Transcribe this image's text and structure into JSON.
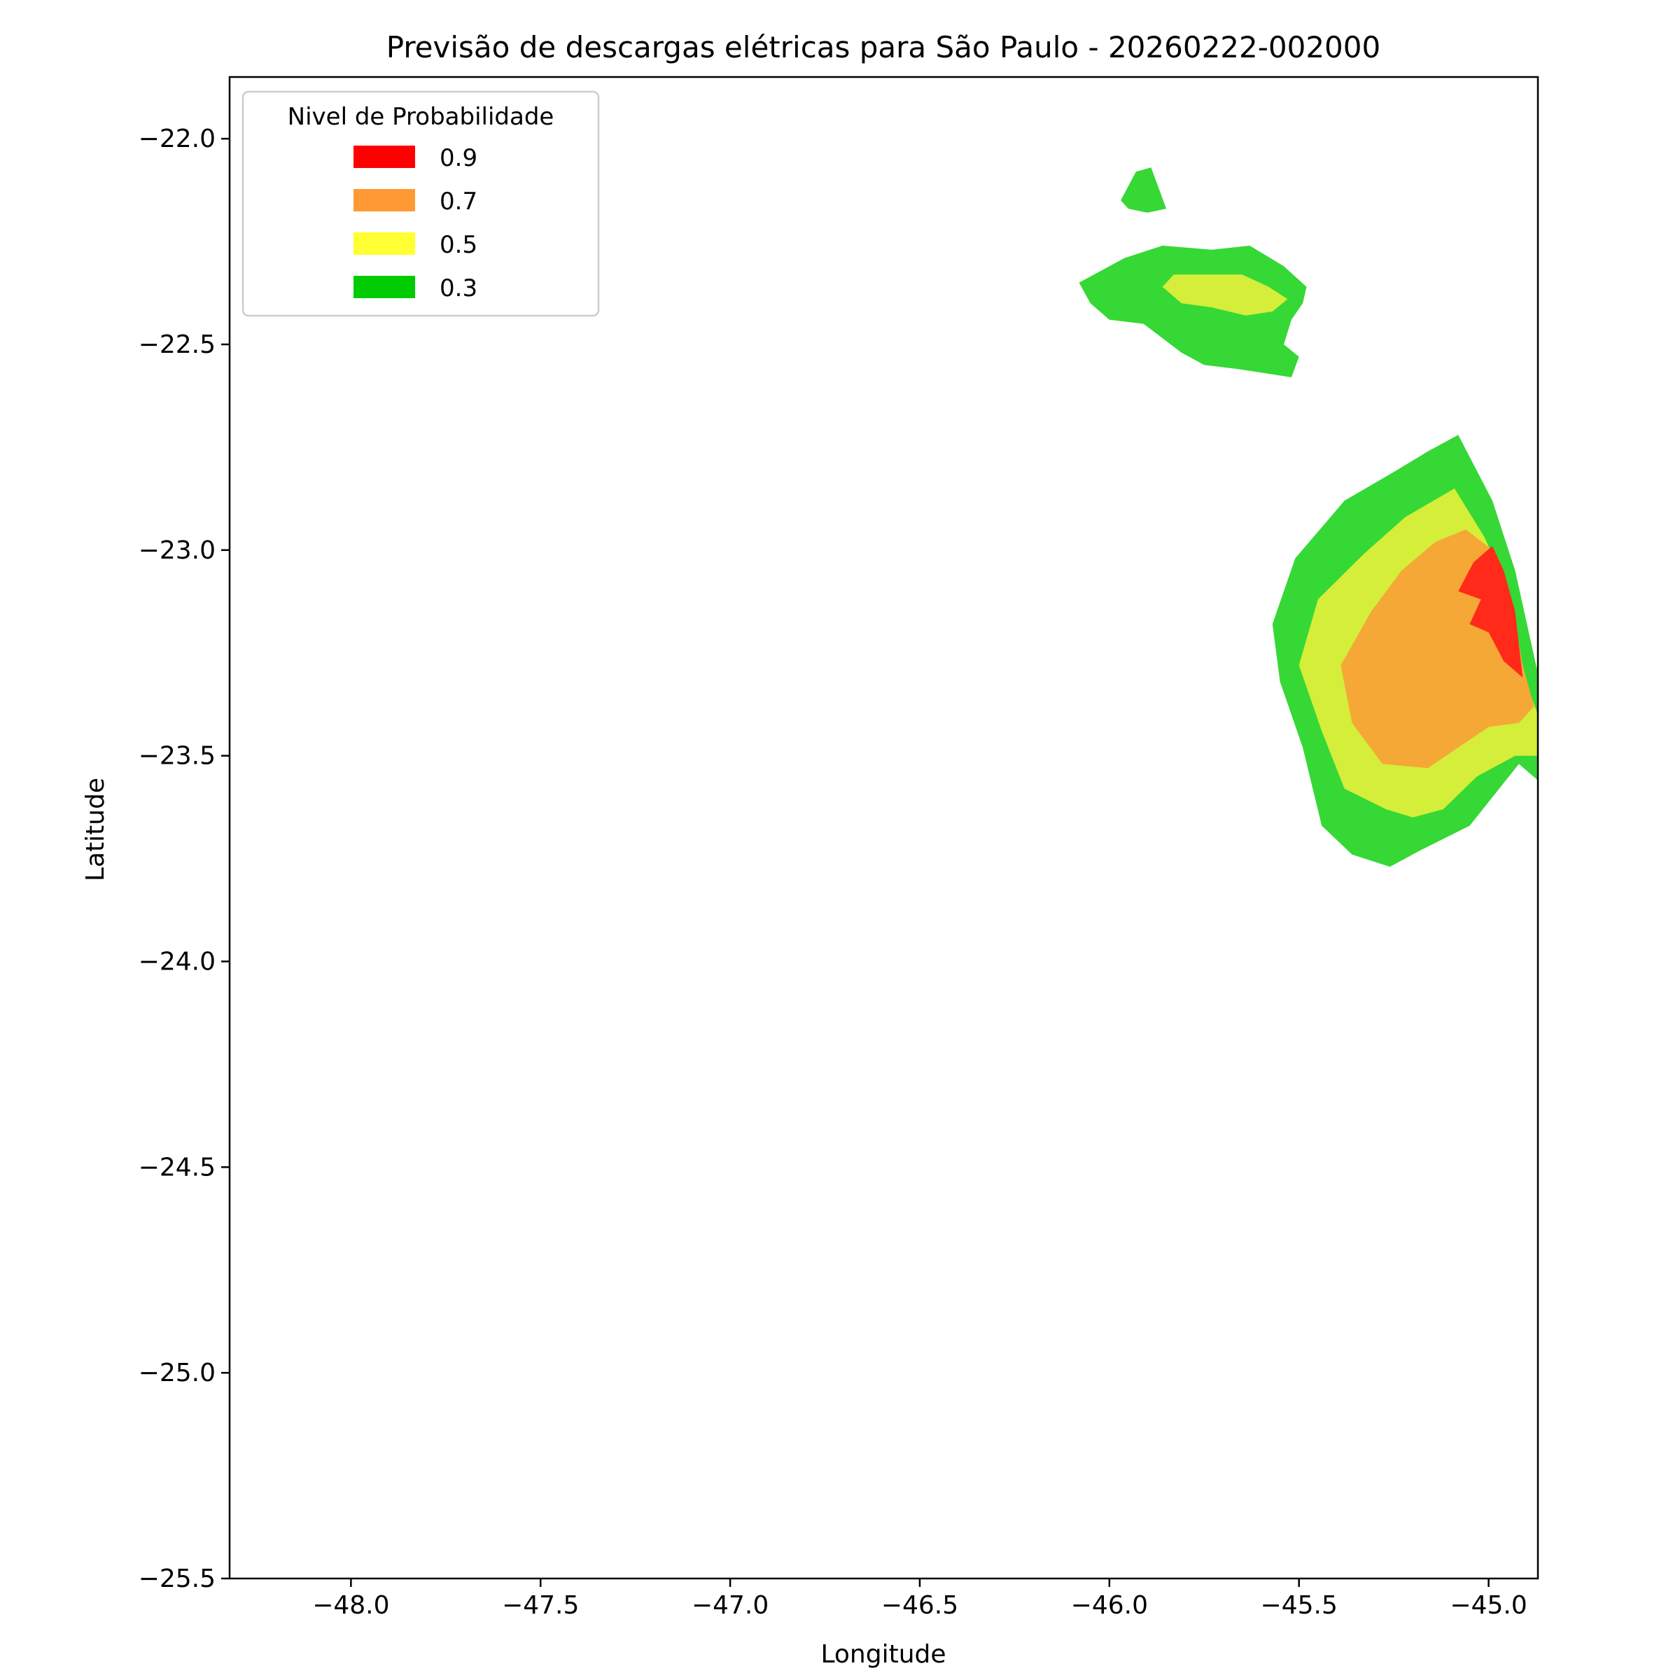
{
  "chart_data": {
    "type": "filled-contour-map",
    "title": "Previsão de descargas elétricas para São Paulo - 20260222-002000",
    "xlabel": "Longitude",
    "ylabel": "Latitude",
    "xlim": [
      -48.32,
      -44.87
    ],
    "ylim": [
      -25.5,
      -21.85
    ],
    "xticks": [
      -48.0,
      -47.5,
      -47.0,
      -46.5,
      -46.0,
      -45.5,
      -45.0
    ],
    "xtick_labels": [
      "−48.0",
      "−47.5",
      "−47.0",
      "−46.5",
      "−46.0",
      "−45.5",
      "−45.0"
    ],
    "yticks": [
      -22.0,
      -22.5,
      -23.0,
      -23.5,
      -24.0,
      -24.5,
      -25.0,
      -25.5
    ],
    "ytick_labels": [
      "−22.0",
      "−22.5",
      "−23.0",
      "−23.5",
      "−24.0",
      "−24.5",
      "−25.0",
      "−25.5"
    ],
    "grid": false,
    "legend": {
      "title": "Nivel de Probabilidade",
      "placement": "top-left",
      "entries": [
        {
          "label": "0.9",
          "color": "#ff0000"
        },
        {
          "label": "0.7",
          "color": "#ff9933"
        },
        {
          "label": "0.5",
          "color": "#ffff33"
        },
        {
          "label": "0.3",
          "color": "#00cc00"
        }
      ]
    },
    "regions": [
      {
        "level": "0.3",
        "color": "#35d835",
        "points": [
          [
            -45.97,
            -22.15
          ],
          [
            -45.93,
            -22.08
          ],
          [
            -45.89,
            -22.07
          ],
          [
            -45.85,
            -22.17
          ],
          [
            -45.9,
            -22.18
          ],
          [
            -45.95,
            -22.17
          ]
        ]
      },
      {
        "level": "0.3",
        "color": "#35d835",
        "points": [
          [
            -46.08,
            -22.35
          ],
          [
            -45.96,
            -22.29
          ],
          [
            -45.86,
            -22.26
          ],
          [
            -45.73,
            -22.27
          ],
          [
            -45.63,
            -22.26
          ],
          [
            -45.54,
            -22.31
          ],
          [
            -45.48,
            -22.36
          ],
          [
            -45.49,
            -22.4
          ],
          [
            -45.52,
            -22.44
          ],
          [
            -45.54,
            -22.5
          ],
          [
            -45.5,
            -22.53
          ],
          [
            -45.52,
            -22.58
          ],
          [
            -45.66,
            -22.56
          ],
          [
            -45.75,
            -22.55
          ],
          [
            -45.81,
            -22.52
          ],
          [
            -45.91,
            -22.45
          ],
          [
            -46.0,
            -22.44
          ],
          [
            -46.05,
            -22.4
          ]
        ]
      },
      {
        "level": "0.5",
        "color": "#d4ee3a",
        "points": [
          [
            -45.86,
            -22.36
          ],
          [
            -45.83,
            -22.33
          ],
          [
            -45.75,
            -22.33
          ],
          [
            -45.65,
            -22.33
          ],
          [
            -45.58,
            -22.36
          ],
          [
            -45.53,
            -22.39
          ],
          [
            -45.57,
            -22.42
          ],
          [
            -45.64,
            -22.43
          ],
          [
            -45.73,
            -22.41
          ],
          [
            -45.81,
            -22.4
          ]
        ]
      },
      {
        "level": "0.3",
        "color": "#35d835",
        "points": [
          [
            -45.08,
            -22.72
          ],
          [
            -44.99,
            -22.88
          ],
          [
            -44.93,
            -23.05
          ],
          [
            -44.87,
            -23.3
          ],
          [
            -44.87,
            -23.56
          ],
          [
            -44.92,
            -23.52
          ],
          [
            -45.05,
            -23.67
          ],
          [
            -45.18,
            -23.73
          ],
          [
            -45.26,
            -23.77
          ],
          [
            -45.36,
            -23.74
          ],
          [
            -45.44,
            -23.67
          ],
          [
            -45.49,
            -23.48
          ],
          [
            -45.55,
            -23.32
          ],
          [
            -45.57,
            -23.18
          ],
          [
            -45.51,
            -23.02
          ],
          [
            -45.38,
            -22.88
          ],
          [
            -45.25,
            -22.81
          ],
          [
            -45.16,
            -22.76
          ]
        ]
      },
      {
        "level": "0.5",
        "color": "#d4ee3a",
        "points": [
          [
            -45.09,
            -22.85
          ],
          [
            -45.01,
            -22.97
          ],
          [
            -44.95,
            -23.1
          ],
          [
            -44.91,
            -23.3
          ],
          [
            -44.87,
            -23.4
          ],
          [
            -44.87,
            -23.5
          ],
          [
            -44.93,
            -23.5
          ],
          [
            -45.03,
            -23.55
          ],
          [
            -45.12,
            -23.63
          ],
          [
            -45.2,
            -23.65
          ],
          [
            -45.27,
            -23.63
          ],
          [
            -45.38,
            -23.58
          ],
          [
            -45.44,
            -23.44
          ],
          [
            -45.5,
            -23.28
          ],
          [
            -45.45,
            -23.12
          ],
          [
            -45.33,
            -23.01
          ],
          [
            -45.22,
            -22.92
          ]
        ]
      },
      {
        "level": "0.7",
        "color": "#f5a835",
        "points": [
          [
            -45.06,
            -22.95
          ],
          [
            -44.99,
            -23.0
          ],
          [
            -44.94,
            -23.12
          ],
          [
            -44.91,
            -23.28
          ],
          [
            -44.88,
            -23.38
          ],
          [
            -44.92,
            -23.42
          ],
          [
            -45.0,
            -23.43
          ],
          [
            -45.08,
            -23.48
          ],
          [
            -45.16,
            -23.53
          ],
          [
            -45.28,
            -23.52
          ],
          [
            -45.36,
            -23.42
          ],
          [
            -45.39,
            -23.28
          ],
          [
            -45.31,
            -23.15
          ],
          [
            -45.23,
            -23.05
          ],
          [
            -45.14,
            -22.98
          ]
        ]
      },
      {
        "level": "0.9",
        "color": "#ff2a1a",
        "points": [
          [
            -44.99,
            -22.99
          ],
          [
            -44.96,
            -23.05
          ],
          [
            -44.93,
            -23.15
          ],
          [
            -44.91,
            -23.31
          ],
          [
            -44.96,
            -23.27
          ],
          [
            -45.0,
            -23.2
          ],
          [
            -45.05,
            -23.18
          ],
          [
            -45.02,
            -23.12
          ],
          [
            -45.08,
            -23.1
          ],
          [
            -45.04,
            -23.03
          ]
        ]
      }
    ]
  }
}
